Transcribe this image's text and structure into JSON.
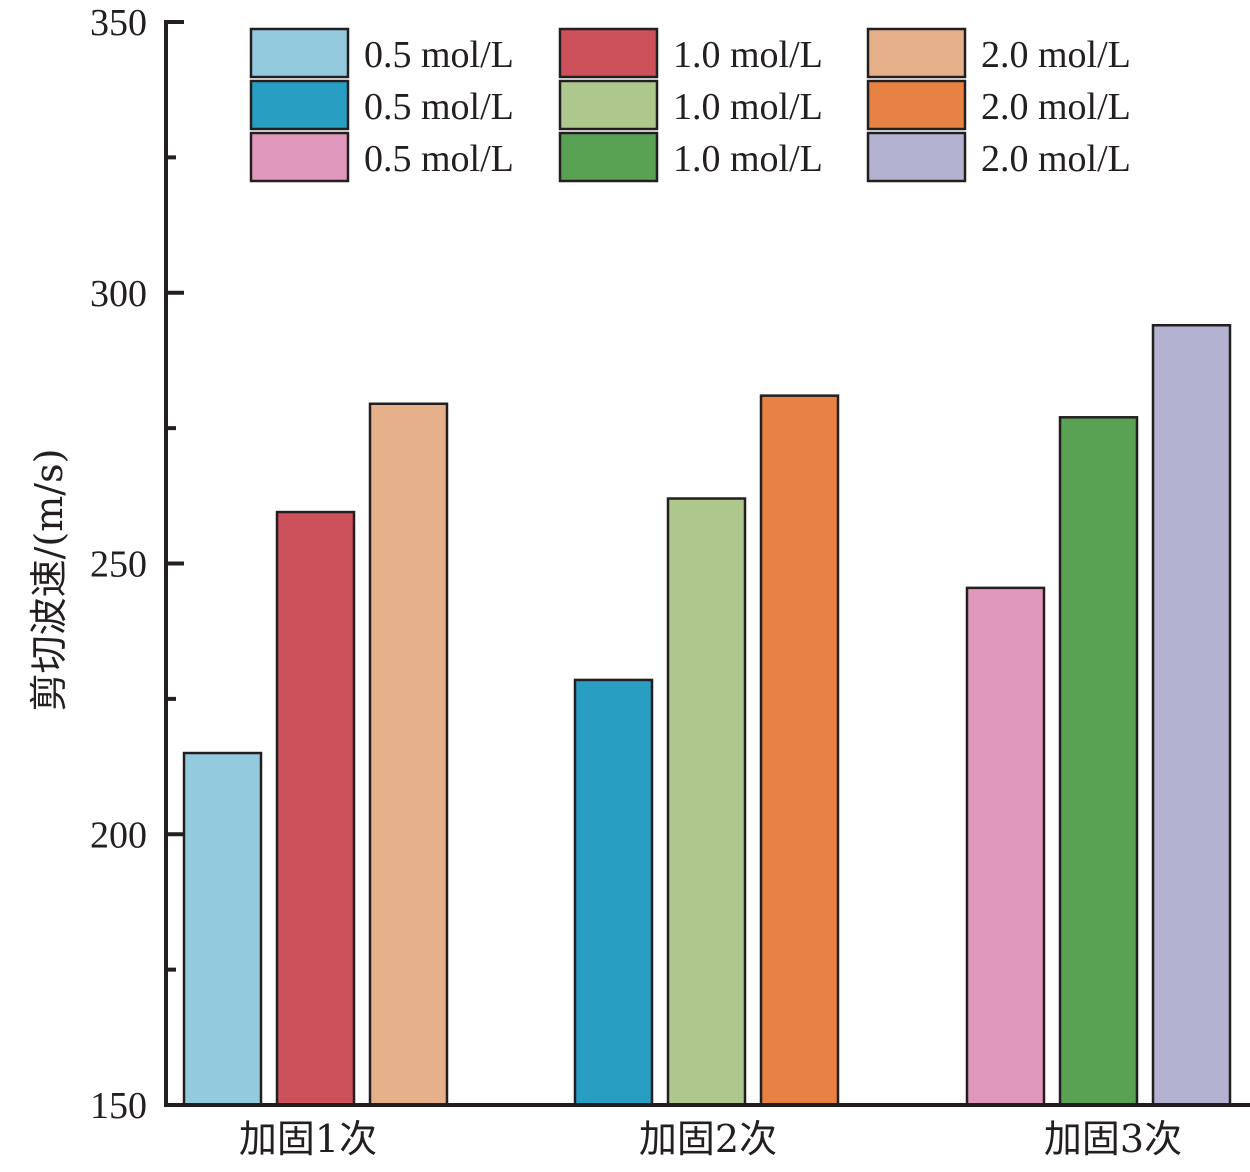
{
  "chart_data": {
    "type": "bar",
    "title": "",
    "xlabel": "",
    "ylabel": "剪切波速/(m/s)",
    "ylim": [
      150,
      350
    ],
    "yticks": [
      150,
      200,
      250,
      300,
      350
    ],
    "yminor_step": 25,
    "grid": false,
    "legend_position": "top",
    "categories": [
      "加固1次",
      "加固2次",
      "加固3次"
    ],
    "bars": [
      {
        "category": "加固1次",
        "label": "0.5 mol/L",
        "value": 215,
        "color": "#93cadd"
      },
      {
        "category": "加固1次",
        "label": "1.0 mol/L",
        "value": 259.5,
        "color": "#cd515b"
      },
      {
        "category": "加固1次",
        "label": "2.0 mol/L",
        "value": 279.5,
        "color": "#e6b18a"
      },
      {
        "category": "加固2次",
        "label": "0.5 mol/L",
        "value": 228.5,
        "color": "#289ec2"
      },
      {
        "category": "加固2次",
        "label": "1.0 mol/L",
        "value": 262,
        "color": "#adc78c"
      },
      {
        "category": "加固2次",
        "label": "2.0 mol/L",
        "value": 281,
        "color": "#e78244"
      },
      {
        "category": "加固3次",
        "label": "0.5 mol/L",
        "value": 245.5,
        "color": "#df98bb"
      },
      {
        "category": "加固3次",
        "label": "1.0 mol/L",
        "value": 277,
        "color": "#59a153"
      },
      {
        "category": "加固3次",
        "label": "2.0 mol/L",
        "value": 294,
        "color": "#b3b3d1"
      }
    ],
    "legend": [
      {
        "label": "0.5 mol/L",
        "color": "#93cadd"
      },
      {
        "label": "0.5 mol/L",
        "color": "#289ec2"
      },
      {
        "label": "0.5 mol/L",
        "color": "#df98bb"
      },
      {
        "label": "1.0 mol/L",
        "color": "#cd515b"
      },
      {
        "label": "1.0 mol/L",
        "color": "#adc78c"
      },
      {
        "label": "1.0 mol/L",
        "color": "#59a153"
      },
      {
        "label": "2.0 mol/L",
        "color": "#e6b18a"
      },
      {
        "label": "2.0 mol/L",
        "color": "#e78244"
      },
      {
        "label": "2.0 mol/L",
        "color": "#b3b3d1"
      }
    ],
    "axis_color": "#231f20"
  }
}
